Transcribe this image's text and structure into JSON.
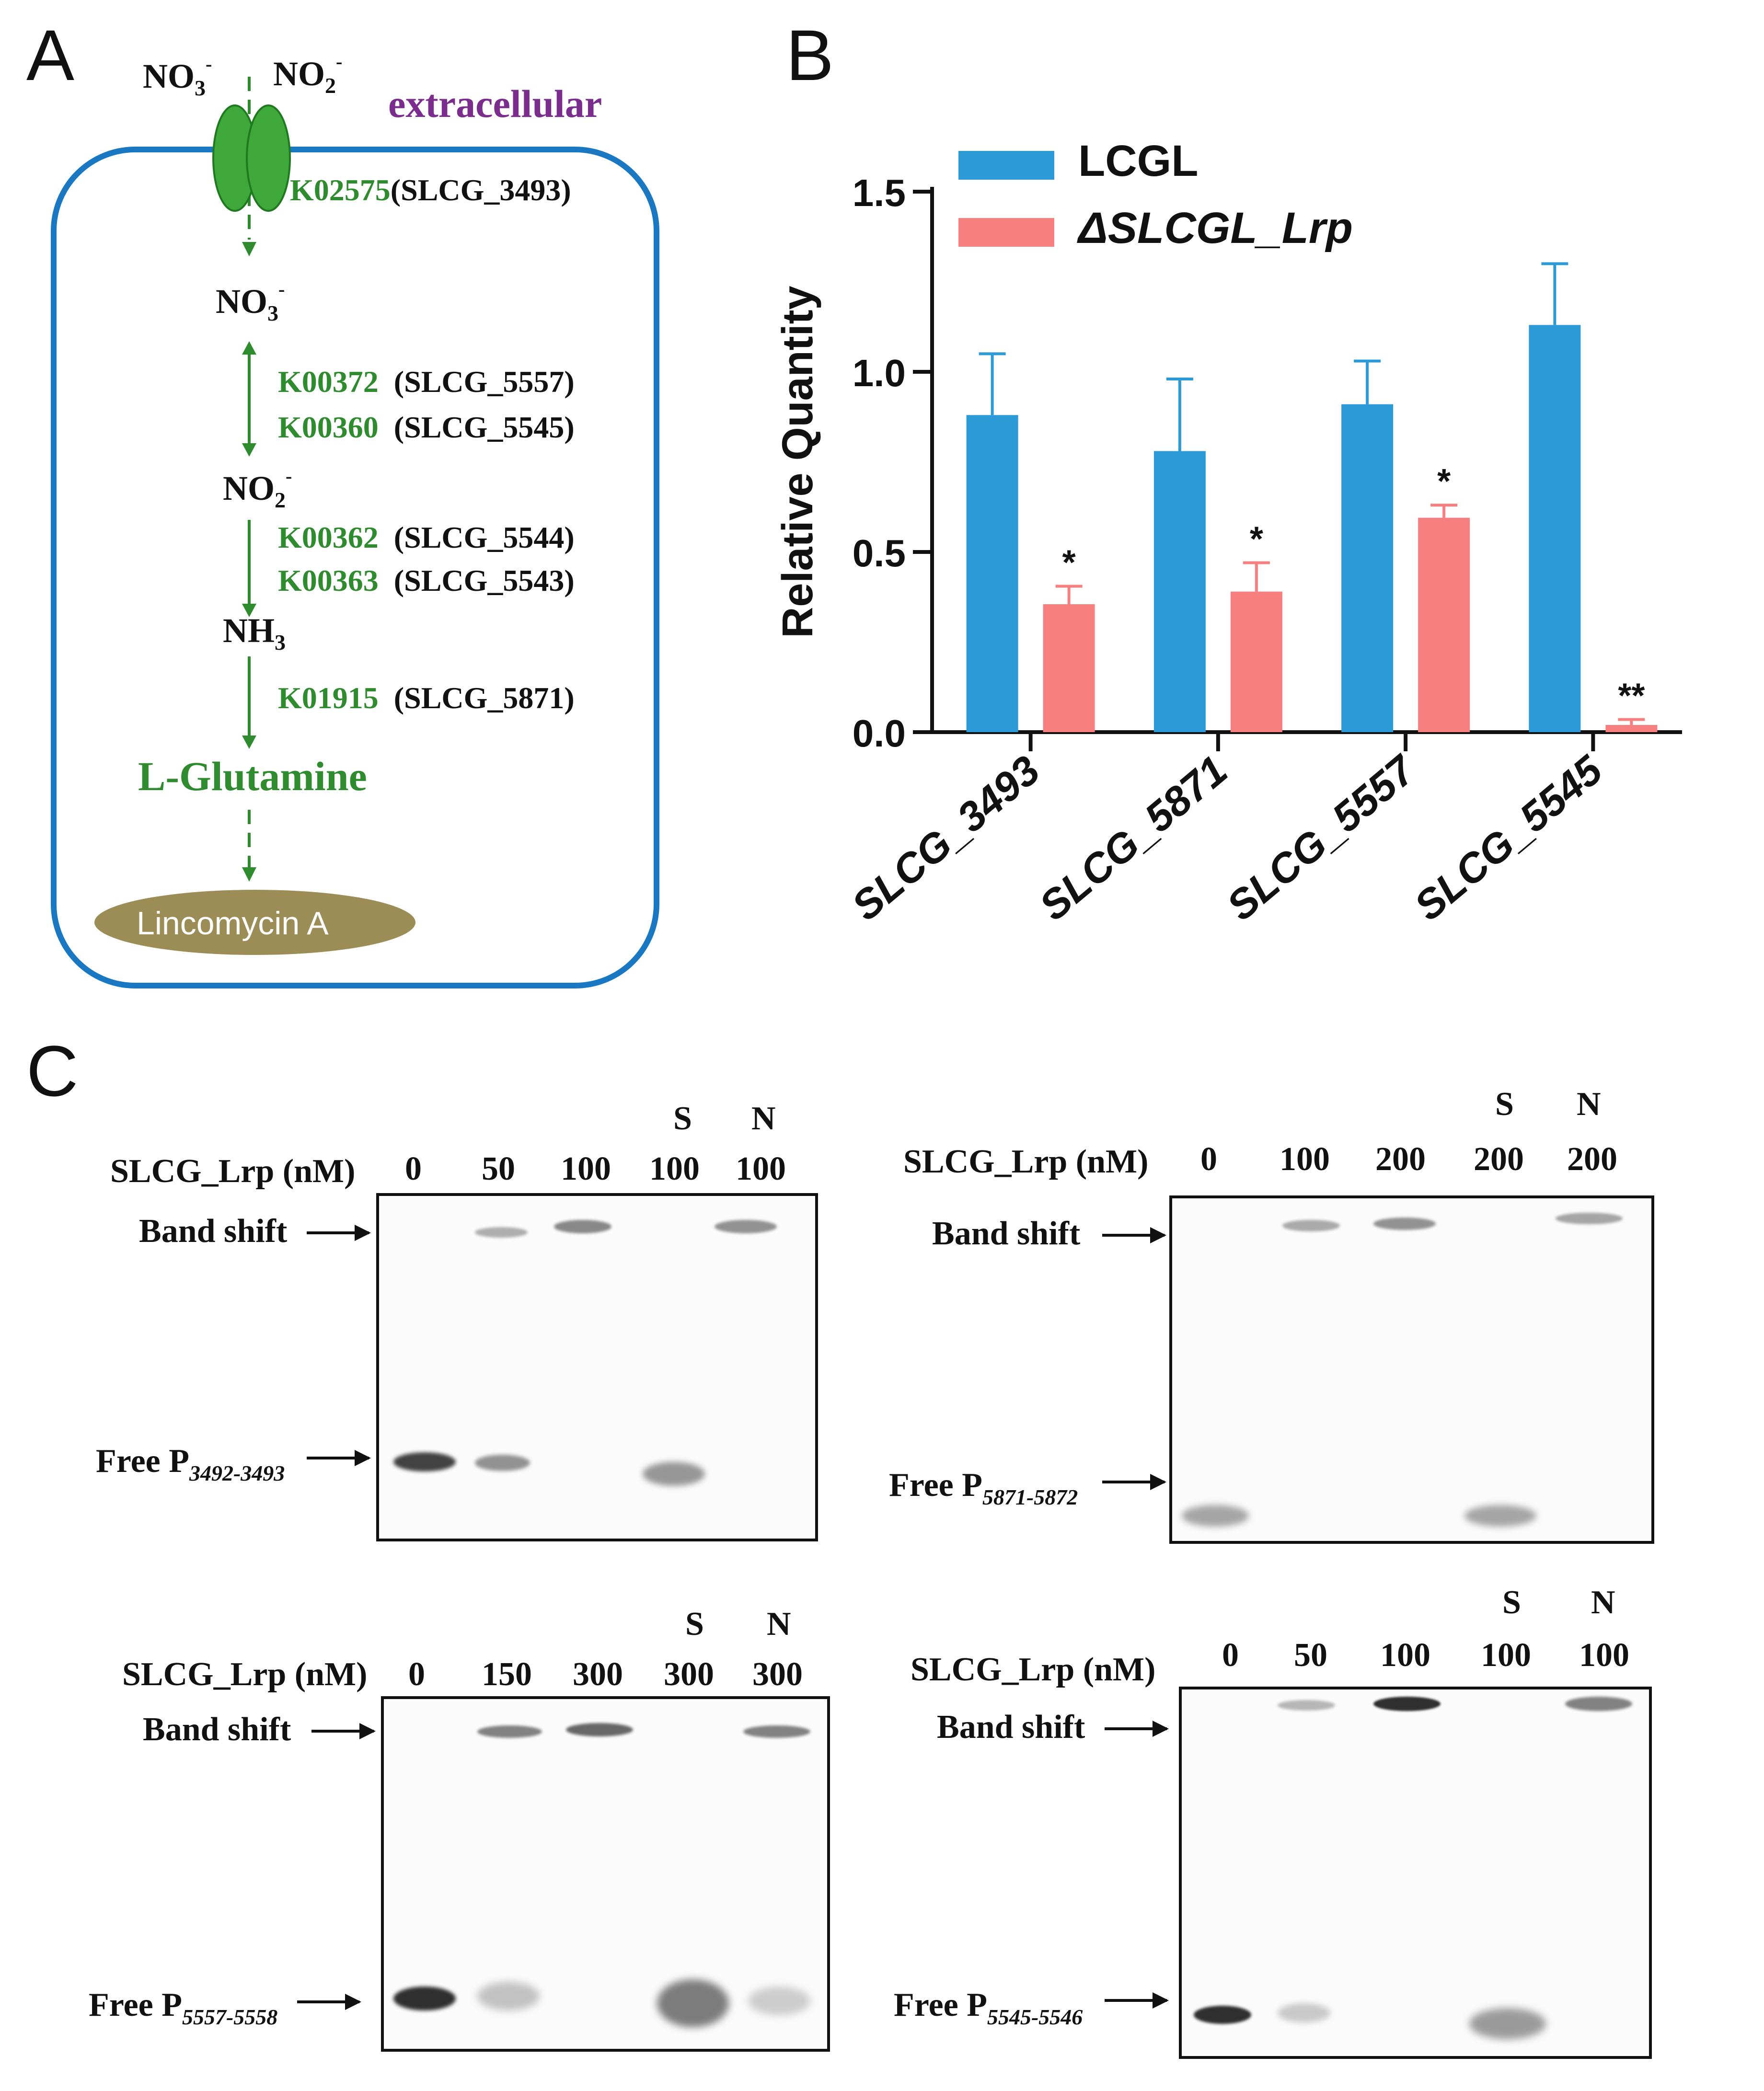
{
  "panel_a": {
    "letter": "A",
    "no3_top": "NO",
    "no3_top_sub": "3",
    "no3_top_sup": "-",
    "no2_top": "NO",
    "no2_top_sub": "2",
    "no2_top_sup": "-",
    "extracellular": "extracellular",
    "transporter_k": "K02575",
    "transporter_gene": "(SLCG_3493)",
    "no3_mid": "NO",
    "no3_mid_sub": "3",
    "no3_mid_sup": "-",
    "step1_k1": "K00372",
    "step1_g1": "(SLCG_5557)",
    "step1_k2": "K00360",
    "step1_g2": "(SLCG_5545)",
    "no2_mid": "NO",
    "no2_mid_sub": "2",
    "no2_mid_sup": "-",
    "step2_k1": "K00362",
    "step2_g1": "(SLCG_5544)",
    "step2_k2": "K00363",
    "step2_g2": "(SLCG_5543)",
    "nh3": "NH",
    "nh3_sub": "3",
    "step3_k": "K01915",
    "step3_g": "(SLCG_5871)",
    "glutamine": "L-Glutamine",
    "lincomycin": "Lincomycin A",
    "colors": {
      "membrane": "#1a78c2",
      "green": "#2e8b2e",
      "lincomycin": "#9c8c55"
    }
  },
  "panel_b": {
    "letter": "B"
  },
  "chart_data": {
    "type": "bar",
    "title": "",
    "xlabel": "",
    "ylabel": "Relative Quantity",
    "ylim": [
      0,
      1.5
    ],
    "yticks": [
      "0.0",
      "0.5",
      "1.0",
      "1.5"
    ],
    "categories": [
      "SLCG_3493",
      "SLCG_5871",
      "SLCG_5557",
      "SLCG_5545"
    ],
    "legend_position": "top-left",
    "series": [
      {
        "name": "LCGL",
        "color": "#2b9ad6",
        "values": [
          0.88,
          0.78,
          0.91,
          1.13
        ],
        "errors": [
          0.17,
          0.2,
          0.12,
          0.17
        ],
        "sig": [
          "",
          "",
          "",
          ""
        ]
      },
      {
        "name": "ΔSLCGL_Lrp",
        "color": "#f77f80",
        "values": [
          0.355,
          0.39,
          0.595,
          0.02
        ],
        "errors": [
          0.05,
          0.08,
          0.035,
          0.015
        ],
        "sig": [
          "*",
          "*",
          "*",
          "**"
        ]
      }
    ]
  },
  "panel_c": {
    "letter": "C",
    "conc_label": "SLCG_Lrp (nM)",
    "band_shift": "Band shift",
    "free_p": "Free P",
    "gels": [
      {
        "lanes": [
          "0",
          "50",
          "100",
          "100",
          "100"
        ],
        "marks": [
          "",
          "",
          "",
          "S",
          "N"
        ],
        "probe": "3492-3493"
      },
      {
        "lanes": [
          "0",
          "100",
          "200",
          "200",
          "200"
        ],
        "marks": [
          "",
          "",
          "",
          "S",
          "N"
        ],
        "probe": "5871-5872"
      },
      {
        "lanes": [
          "0",
          "150",
          "300",
          "300",
          "300"
        ],
        "marks": [
          "",
          "",
          "",
          "S",
          "N"
        ],
        "probe": "5557-5558"
      },
      {
        "lanes": [
          "0",
          "50",
          "100",
          "100",
          "100"
        ],
        "marks": [
          "",
          "",
          "",
          "S",
          "N"
        ],
        "probe": "5545-5546"
      }
    ]
  }
}
